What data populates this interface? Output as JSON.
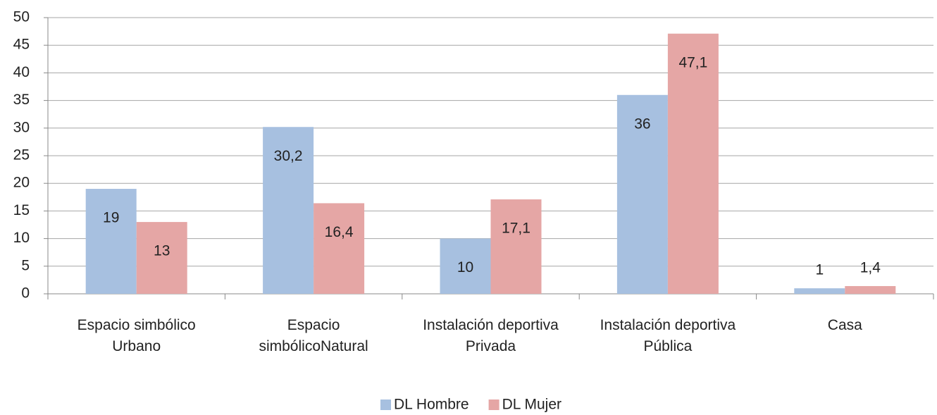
{
  "chart_data": {
    "type": "bar",
    "categories": [
      "Espacio simbólico\nUrbano",
      "Espacio\nsimbólicoNatural",
      "Instalación deportiva\nPrivada",
      "Instalación deportiva\nPública",
      "Casa"
    ],
    "series": [
      {
        "name": "DL Hombre",
        "color": "#a7c0e0",
        "values": [
          19,
          30.2,
          10,
          36,
          1
        ],
        "value_labels": [
          "19",
          "30,2",
          "10",
          "36",
          "1"
        ]
      },
      {
        "name": "DL Mujer",
        "color": "#e5a6a5",
        "values": [
          13,
          16.4,
          17.1,
          47.1,
          1.4
        ],
        "value_labels": [
          "13",
          "16,4",
          "17,1",
          "47,1",
          "1,4"
        ]
      }
    ],
    "ylim": [
      0,
      50
    ],
    "yticks": [
      0,
      5,
      10,
      15,
      20,
      25,
      30,
      35,
      40,
      45,
      50
    ],
    "grid": true,
    "legend": "bottom"
  }
}
